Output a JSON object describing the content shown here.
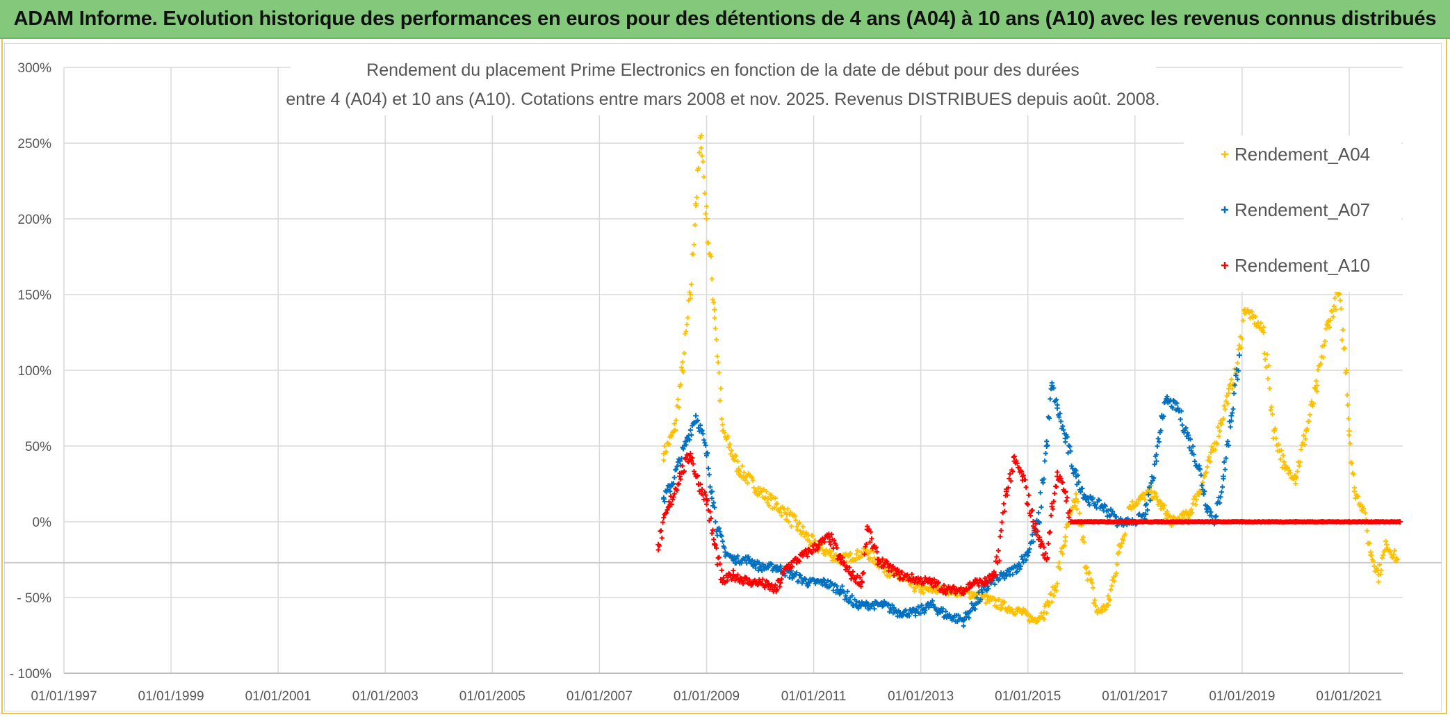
{
  "header": {
    "title": "ADAM Informe. Evolution historique des performances en euros pour des détentions de 4 ans (A04) à 10 ans (A10) avec les revenus connus distribués"
  },
  "colors": {
    "header_bg": "#84c97b",
    "a04": "#ffc000",
    "a07": "#0070c0",
    "a10": "#ff0000",
    "grid": "#d9d9d9"
  },
  "chart_data": {
    "type": "scatter",
    "title_lines": [
      "Rendement du placement Prime Electronics  en fonction de la date de début pour des durées",
      "entre 4 (A04) et 10 ans (A10). Cotations entre mars 2008 et nov. 2025. Revenus DISTRIBUES depuis août. 2008."
    ],
    "xlabel": "",
    "ylabel": "",
    "x_range": [
      1997.0,
      2022.0
    ],
    "ylim": [
      -100,
      300
    ],
    "x_ticks": [
      {
        "value": 1997,
        "label": "01/01/1997"
      },
      {
        "value": 1999,
        "label": "01/01/1999"
      },
      {
        "value": 2001,
        "label": "01/01/2001"
      },
      {
        "value": 2003,
        "label": "01/01/2003"
      },
      {
        "value": 2005,
        "label": "01/01/2005"
      },
      {
        "value": 2007,
        "label": "01/01/2007"
      },
      {
        "value": 2009,
        "label": "01/01/2009"
      },
      {
        "value": 2011,
        "label": "01/01/2011"
      },
      {
        "value": 2013,
        "label": "01/01/2013"
      },
      {
        "value": 2015,
        "label": "01/01/2015"
      },
      {
        "value": 2017,
        "label": "01/01/2017"
      },
      {
        "value": 2019,
        "label": "01/01/2019"
      },
      {
        "value": 2021,
        "label": "01/01/2021"
      }
    ],
    "y_ticks": [
      {
        "value": 300,
        "label": "300%"
      },
      {
        "value": 250,
        "label": "250%"
      },
      {
        "value": 200,
        "label": "200%"
      },
      {
        "value": 150,
        "label": "150%"
      },
      {
        "value": 100,
        "label": "100%"
      },
      {
        "value": 50,
        "label": "50%"
      },
      {
        "value": 0,
        "label": "0%"
      },
      {
        "value": -50,
        "label": "- 50%"
      },
      {
        "value": -100,
        "label": "- 100%"
      }
    ],
    "reference_line_y": -27,
    "legend_position": "top-right",
    "series": [
      {
        "name": "Rendement_A04",
        "color": "#ffc000",
        "x": [
          2008.2,
          2008.4,
          2008.55,
          2008.7,
          2008.8,
          2008.9,
          2009.0,
          2009.15,
          2009.3,
          2009.6,
          2010.0,
          2010.5,
          2011.0,
          2011.5,
          2012.0,
          2012.5,
          2013.0,
          2013.5,
          2014.0,
          2014.5,
          2014.9,
          2015.1,
          2015.3,
          2015.5,
          2015.7,
          2015.9,
          2016.1,
          2016.3,
          2016.5,
          2016.7,
          2016.9,
          2017.1,
          2017.3,
          2017.5,
          2017.7,
          2018.0,
          2018.2,
          2018.4,
          2018.6,
          2018.75,
          2018.9,
          2019.05,
          2019.2,
          2019.4,
          2019.6,
          2019.8,
          2020.0,
          2020.2,
          2020.4,
          2020.6,
          2020.8,
          2020.95,
          2021.0,
          2021.1,
          2021.25,
          2021.4,
          2021.55,
          2021.7,
          2021.9
        ],
        "y": [
          45,
          60,
          100,
          150,
          210,
          255,
          200,
          140,
          60,
          35,
          20,
          5,
          -15,
          -25,
          -20,
          -35,
          -45,
          -45,
          -48,
          -55,
          -60,
          -65,
          -60,
          -45,
          -10,
          15,
          -30,
          -60,
          -55,
          -20,
          10,
          15,
          20,
          10,
          0,
          5,
          20,
          40,
          65,
          85,
          100,
          140,
          135,
          125,
          60,
          35,
          30,
          60,
          90,
          130,
          150,
          100,
          60,
          20,
          10,
          -20,
          -35,
          -15,
          -25
        ]
      },
      {
        "name": "Rendement_A07",
        "color": "#0070c0",
        "x": [
          2008.2,
          2008.35,
          2008.5,
          2008.65,
          2008.8,
          2008.9,
          2009.0,
          2009.1,
          2009.2,
          2009.35,
          2009.5,
          2009.8,
          2010.0,
          2010.3,
          2010.6,
          2010.9,
          2011.2,
          2011.5,
          2011.8,
          2012.0,
          2012.3,
          2012.6,
          2012.9,
          2013.2,
          2013.5,
          2013.8,
          2014.0,
          2014.3,
          2014.6,
          2014.8,
          2015.0,
          2015.2,
          2015.35,
          2015.45,
          2015.55,
          2015.7,
          2015.9,
          2016.1,
          2016.4,
          2016.7,
          2017.0,
          2017.2,
          2017.4,
          2017.5,
          2017.6,
          2017.8,
          2018.0,
          2018.2,
          2018.35,
          2018.5,
          2018.65,
          2018.8,
          2018.95
        ],
        "y": [
          15,
          25,
          40,
          55,
          70,
          60,
          45,
          20,
          -5,
          -20,
          -25,
          -25,
          -30,
          -30,
          -35,
          -40,
          -40,
          -45,
          -55,
          -55,
          -55,
          -60,
          -60,
          -55,
          -62,
          -65,
          -55,
          -40,
          -35,
          -30,
          -20,
          0,
          50,
          90,
          75,
          55,
          30,
          15,
          10,
          0,
          0,
          5,
          40,
          70,
          80,
          75,
          55,
          35,
          10,
          0,
          30,
          70,
          110
        ]
      },
      {
        "name": "Rendement_A10",
        "color": "#ff0000",
        "x": [
          2008.1,
          2008.3,
          2008.5,
          2008.7,
          2008.85,
          2009.0,
          2009.15,
          2009.3,
          2009.5,
          2009.8,
          2010.0,
          2010.3,
          2010.5,
          2010.7,
          2010.9,
          2011.1,
          2011.3,
          2011.5,
          2011.7,
          2011.9,
          2012.0,
          2012.2,
          2012.4,
          2012.6,
          2012.9,
          2013.2,
          2013.5,
          2013.8,
          2014.0,
          2014.2,
          2014.4,
          2014.6,
          2014.75,
          2014.9,
          2015.1,
          2015.25,
          2015.35,
          2015.45,
          2015.55,
          2015.7,
          2015.8,
          2016.0,
          2016.5,
          2017.0,
          2017.5,
          2018.0,
          2018.5,
          2019.0,
          2019.5,
          2020.0,
          2020.5,
          2021.0,
          2021.5,
          2021.95
        ],
        "y": [
          -15,
          10,
          30,
          45,
          25,
          15,
          -15,
          -40,
          -35,
          -40,
          -40,
          -45,
          -30,
          -25,
          -20,
          -15,
          -10,
          -25,
          -35,
          -40,
          -5,
          -25,
          -30,
          -35,
          -38,
          -40,
          -45,
          -45,
          -40,
          -40,
          -35,
          20,
          40,
          30,
          0,
          -15,
          -25,
          10,
          30,
          20,
          0,
          0,
          0,
          0,
          0,
          0,
          0,
          0,
          0,
          0,
          0,
          0,
          0,
          0
        ]
      }
    ]
  }
}
